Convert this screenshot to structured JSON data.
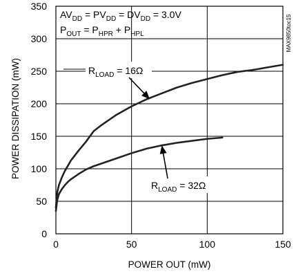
{
  "chart_data": {
    "type": "line",
    "xlabel": "POWER OUT (mW)",
    "ylabel": "POWER DISSIPATION (mW)",
    "xlim": [
      0,
      150
    ],
    "ylim": [
      0,
      350
    ],
    "x_ticks": [
      "0",
      "50",
      "100",
      "150"
    ],
    "y_ticks": [
      "0",
      "50",
      "100",
      "150",
      "200",
      "250",
      "300",
      "350"
    ],
    "grid": true,
    "condition_lines": {
      "line1": {
        "prefix": "AV",
        "p1": "DD",
        "t1": " = PV",
        "p2": "DD",
        "t2": " = DV",
        "p3": "DD",
        "t3": " = 3.0V"
      },
      "line2": {
        "prefix": "P",
        "p1": "OUT",
        "t1": " = P",
        "p2": "HPR",
        "t2": " + P",
        "p3": "HPL"
      }
    },
    "figure_id": "MAX9850toc15",
    "series": [
      {
        "label_main": "R",
        "label_sub": "LOAD",
        "label_tail": " = 16Ω",
        "x": [
          0,
          0.5,
          1,
          2,
          4,
          6,
          8,
          10,
          15,
          20,
          25,
          30,
          40,
          50,
          60,
          70,
          80,
          90,
          100,
          110,
          120,
          130,
          140,
          150
        ],
        "y": [
          40,
          55,
          65,
          75,
          87,
          97,
          105,
          113,
          128,
          142,
          158,
          167,
          183,
          196,
          207,
          216,
          225,
          232,
          238,
          244,
          249,
          252,
          256,
          260
        ]
      },
      {
        "label_main": "R",
        "label_sub": "LOAD",
        "label_tail": " = 32Ω",
        "x": [
          0,
          0.5,
          1,
          2,
          4,
          6,
          8,
          10,
          15,
          20,
          25,
          30,
          40,
          50,
          60,
          70,
          80,
          90,
          100,
          110
        ],
        "y": [
          35,
          45,
          53,
          61,
          69,
          75,
          80,
          84,
          92,
          99,
          104,
          108,
          116,
          124,
          131,
          136,
          140,
          143,
          146,
          148
        ]
      }
    ]
  }
}
